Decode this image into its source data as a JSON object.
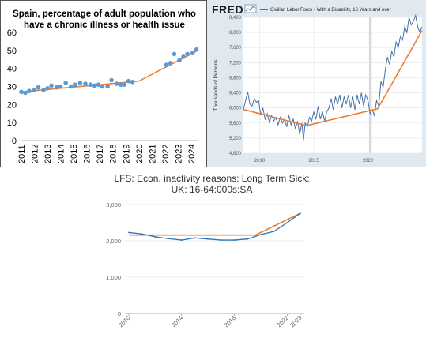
{
  "colors": {
    "spain_points": "#5b9bd5",
    "trend_orange": "#ed7d31",
    "fred_series": "#4572a7",
    "fred_bg": "#e1e9f0",
    "lfs_series": "#2e75b6"
  },
  "chart_data": [
    {
      "type": "scatter",
      "title": "Spain, percentage of adult population who have a chronic illness or health issue",
      "title_lines": [
        "Spain, percentage of adult population who",
        "have a chronic illness or health issue"
      ],
      "xlabel": "",
      "ylabel": "",
      "ylim": [
        0,
        60
      ],
      "yticks": [
        "0",
        "10",
        "20",
        "30",
        "40",
        "50",
        "60"
      ],
      "xticks": [
        "2011",
        "2012",
        "2013",
        "2014",
        "2015",
        "2016",
        "2017",
        "2018",
        "2019",
        "2020",
        "2021",
        "2022",
        "2023",
        "2024"
      ],
      "grid": false,
      "points": [
        {
          "x": 2011.0,
          "y": 27
        },
        {
          "x": 2011.3,
          "y": 26.5
        },
        {
          "x": 2011.6,
          "y": 27.5
        },
        {
          "x": 2012.0,
          "y": 28
        },
        {
          "x": 2012.3,
          "y": 29.5
        },
        {
          "x": 2012.7,
          "y": 28
        },
        {
          "x": 2013.0,
          "y": 29
        },
        {
          "x": 2013.3,
          "y": 30.5
        },
        {
          "x": 2013.7,
          "y": 29.5
        },
        {
          "x": 2014.0,
          "y": 30
        },
        {
          "x": 2014.4,
          "y": 32
        },
        {
          "x": 2014.8,
          "y": 30
        },
        {
          "x": 2015.1,
          "y": 31
        },
        {
          "x": 2015.5,
          "y": 32
        },
        {
          "x": 2015.9,
          "y": 31.5
        },
        {
          "x": 2016.3,
          "y": 31
        },
        {
          "x": 2016.6,
          "y": 30.5
        },
        {
          "x": 2016.9,
          "y": 31
        },
        {
          "x": 2017.2,
          "y": 30
        },
        {
          "x": 2017.6,
          "y": 30
        },
        {
          "x": 2017.9,
          "y": 33.5
        },
        {
          "x": 2018.3,
          "y": 31.5
        },
        {
          "x": 2018.6,
          "y": 31
        },
        {
          "x": 2018.9,
          "y": 31
        },
        {
          "x": 2019.2,
          "y": 33
        },
        {
          "x": 2019.5,
          "y": 32.5
        },
        {
          "x": 2022.1,
          "y": 42
        },
        {
          "x": 2022.4,
          "y": 43
        },
        {
          "x": 2022.7,
          "y": 48
        },
        {
          "x": 2023.1,
          "y": 44.5
        },
        {
          "x": 2023.4,
          "y": 46.5
        },
        {
          "x": 2023.7,
          "y": 48
        },
        {
          "x": 2024.1,
          "y": 48.5
        },
        {
          "x": 2024.4,
          "y": 50.5
        }
      ],
      "trend": [
        {
          "x": 2011.0,
          "y": 27
        },
        {
          "x": 2020.0,
          "y": 33
        },
        {
          "x": 2024.4,
          "y": 49.5
        }
      ]
    },
    {
      "type": "line",
      "title": "Civilian Labor Force - With a Disability, 16 Years and over",
      "brand": "FRED",
      "ylabel": "Thousands of Persons",
      "xlabel": "",
      "ylim": [
        4800,
        8400
      ],
      "yticks": [
        "4,800",
        "5,200",
        "5,600",
        "6,000",
        "6,400",
        "6,800",
        "7,200",
        "7,600",
        "8,000",
        "8,400"
      ],
      "xticks": [
        "2010",
        "2015",
        "2020"
      ],
      "grid": true,
      "recession_shading": [
        2020.1,
        2020.35
      ],
      "series": [
        {
          "values": [
            [
              2008.5,
              5960
            ],
            [
              2008.7,
              6200
            ],
            [
              2008.9,
              6420
            ],
            [
              2009.1,
              6100
            ],
            [
              2009.3,
              6050
            ],
            [
              2009.5,
              6250
            ],
            [
              2009.7,
              6150
            ],
            [
              2009.9,
              6200
            ],
            [
              2010.1,
              5800
            ],
            [
              2010.3,
              6000
            ],
            [
              2010.5,
              5700
            ],
            [
              2010.7,
              5850
            ],
            [
              2010.9,
              5600
            ],
            [
              2011.1,
              5800
            ],
            [
              2011.3,
              5650
            ],
            [
              2011.5,
              5750
            ],
            [
              2011.7,
              5550
            ],
            [
              2011.9,
              5750
            ],
            [
              2012.1,
              5600
            ],
            [
              2012.3,
              5700
            ],
            [
              2012.5,
              5500
            ],
            [
              2012.7,
              5800
            ],
            [
              2012.9,
              5550
            ],
            [
              2013.1,
              5700
            ],
            [
              2013.3,
              5450
            ],
            [
              2013.5,
              5650
            ],
            [
              2013.7,
              5300
            ],
            [
              2013.9,
              5600
            ],
            [
              2014.05,
              5150
            ],
            [
              2014.2,
              5600
            ],
            [
              2014.4,
              5500
            ],
            [
              2014.6,
              5750
            ],
            [
              2014.8,
              5650
            ],
            [
              2015.0,
              5900
            ],
            [
              2015.2,
              5700
            ],
            [
              2015.4,
              6050
            ],
            [
              2015.6,
              5700
            ],
            [
              2015.8,
              5900
            ],
            [
              2016.0,
              5650
            ],
            [
              2016.2,
              5900
            ],
            [
              2016.4,
              6000
            ],
            [
              2016.6,
              6250
            ],
            [
              2016.8,
              5950
            ],
            [
              2017.0,
              6300
            ],
            [
              2017.2,
              6100
            ],
            [
              2017.4,
              6350
            ],
            [
              2017.6,
              6000
            ],
            [
              2017.8,
              6300
            ],
            [
              2018.0,
              6100
            ],
            [
              2018.2,
              6350
            ],
            [
              2018.4,
              6000
            ],
            [
              2018.6,
              6300
            ],
            [
              2018.8,
              5950
            ],
            [
              2019.0,
              6350
            ],
            [
              2019.2,
              6100
            ],
            [
              2019.4,
              6400
            ],
            [
              2019.6,
              6050
            ],
            [
              2019.8,
              6350
            ],
            [
              2020.0,
              6200
            ],
            [
              2020.2,
              5850
            ],
            [
              2020.4,
              5950
            ],
            [
              2020.6,
              5800
            ],
            [
              2020.8,
              6200
            ],
            [
              2021.0,
              6050
            ],
            [
              2021.2,
              6700
            ],
            [
              2021.4,
              6550
            ],
            [
              2021.6,
              7000
            ],
            [
              2021.8,
              7350
            ],
            [
              2022.0,
              7150
            ],
            [
              2022.2,
              7500
            ],
            [
              2022.4,
              7350
            ],
            [
              2022.6,
              7750
            ],
            [
              2022.8,
              7600
            ],
            [
              2023.0,
              7900
            ],
            [
              2023.2,
              7800
            ],
            [
              2023.4,
              8150
            ],
            [
              2023.6,
              8000
            ],
            [
              2023.8,
              8400
            ],
            [
              2024.0,
              8200
            ],
            [
              2024.2,
              8300
            ],
            [
              2024.4,
              8450
            ],
            [
              2024.6,
              8150
            ],
            [
              2024.8,
              8000
            ],
            [
              2025.0,
              8150
            ]
          ]
        }
      ],
      "trend": [
        {
          "x": 2008.5,
          "y": 5960
        },
        {
          "x": 2014.3,
          "y": 5530
        },
        {
          "x": 2020.9,
          "y": 5980
        },
        {
          "x": 2025.0,
          "y": 8050
        }
      ]
    },
    {
      "type": "line",
      "title": "LFS: Econ. inactivity reasons: Long Term Sick: UK: 16-64:000s:SA",
      "title_lines": [
        "LFS: Econ. inactivity reasons: Long Term Sick:",
        "UK: 16-64:000s:SA"
      ],
      "xlabel": "",
      "ylabel": "",
      "ylim": [
        0,
        3000
      ],
      "yticks": [
        "0",
        "1,000",
        "2,000",
        "3,000"
      ],
      "xticks": [
        "2010",
        "2014",
        "2018",
        "2022",
        "2023"
      ],
      "grid": true,
      "series": [
        {
          "values": [
            [
              2010,
              2230
            ],
            [
              2011,
              2190
            ],
            [
              2012,
              2110
            ],
            [
              2013,
              2060
            ],
            [
              2014,
              2020
            ],
            [
              2015,
              2080
            ],
            [
              2016,
              2050
            ],
            [
              2017,
              2020
            ],
            [
              2018,
              2020
            ],
            [
              2019,
              2050
            ],
            [
              2020,
              2170
            ],
            [
              2021,
              2260
            ],
            [
              2022,
              2500
            ],
            [
              2023,
              2760
            ]
          ]
        }
      ],
      "trend": [
        {
          "x": 2010,
          "y": 2160
        },
        {
          "x": 2019.6,
          "y": 2160
        },
        {
          "x": 2023,
          "y": 2760
        }
      ]
    }
  ]
}
